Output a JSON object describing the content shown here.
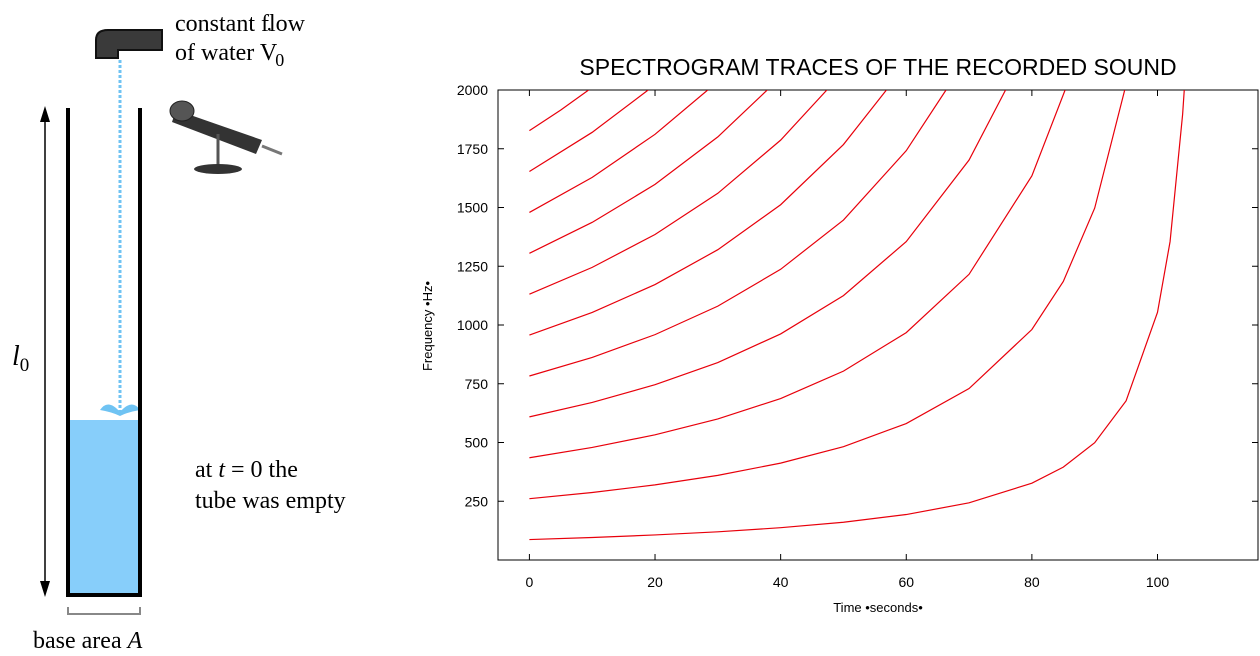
{
  "diagram": {
    "flow_line_1": "constant flow",
    "flow_line_2": "of water",
    "flow_symbol": "V",
    "flow_dot": "˙",
    "flow_subscript": "0",
    "length_symbol": "l",
    "length_subscript": "0",
    "note_line_1_start": "at",
    "note_time": "t",
    "note_line_1_end": "= 0  the",
    "note_line_2": "tube was empty",
    "base_label": "base area",
    "base_symbol": "A"
  },
  "chart_data": {
    "type": "line",
    "title": "SPECTROGRAM TRACES OF THE RECORDED SOUND",
    "x_label": "Time •seconds•",
    "y_label": "Frequency •Hz•",
    "xlim": [
      -5,
      116
    ],
    "ylim": [
      0,
      2000
    ],
    "xticks": [
      0,
      20,
      40,
      60,
      80,
      100
    ],
    "yticks": [
      250,
      500,
      750,
      1000,
      1250,
      1500,
      1750,
      2000
    ],
    "color": "#e8000b",
    "series": [
      {
        "x": [
          0,
          10,
          20,
          30,
          40,
          50,
          60,
          70,
          80,
          85,
          90,
          95,
          100,
          102,
          104,
          104.26
        ],
        "values": [
          87,
          95.8,
          106.6,
          120.0,
          137.4,
          160.7,
          193.5,
          243.2,
          327.0,
          395.1,
          499.1,
          677.4,
          1053.7,
          1354.8,
          1896.6,
          2000
        ]
      },
      {
        "x": [
          0,
          10,
          20,
          30,
          40,
          50,
          60,
          70,
          80,
          85,
          90,
          94.78
        ],
        "values": [
          261,
          287.3,
          319.6,
          360.1,
          412.3,
          482.2,
          580.6,
          729.5,
          980.8,
          1185.3,
          1497.4,
          2000
        ]
      },
      {
        "x": [
          0,
          10,
          20,
          30,
          40,
          50,
          60,
          70,
          80,
          85.29
        ],
        "values": [
          435,
          478.9,
          532.8,
          600.2,
          687.2,
          803.6,
          967.7,
          1215.8,
          1634.7,
          2000
        ]
      },
      {
        "x": [
          0,
          10,
          20,
          30,
          40,
          50,
          60,
          70,
          75.81
        ],
        "values": [
          609,
          670.5,
          745.9,
          840.2,
          962.1,
          1125.1,
          1354.8,
          1702.1,
          2000
        ]
      },
      {
        "x": [
          0,
          10,
          20,
          30,
          40,
          50,
          60,
          66.33
        ],
        "values": [
          783,
          862.0,
          959.0,
          1080.3,
          1237.0,
          1446.5,
          1741.9,
          2000
        ]
      },
      {
        "x": [
          0,
          10,
          20,
          30,
          40,
          50,
          56.84
        ],
        "values": [
          957,
          1053.6,
          1172.1,
          1320.4,
          1511.8,
          1767.9,
          2000
        ]
      },
      {
        "x": [
          0,
          10,
          20,
          30,
          40,
          47.36
        ],
        "values": [
          1131,
          1245.2,
          1385.2,
          1560.5,
          1786.7,
          2000
        ]
      },
      {
        "x": [
          0,
          10,
          20,
          30,
          37.87
        ],
        "values": [
          1305,
          1436.8,
          1598.3,
          1800.5,
          2000
        ]
      },
      {
        "x": [
          0,
          10,
          20,
          28.39
        ],
        "values": [
          1479,
          1628.3,
          1811.4,
          2000
        ]
      },
      {
        "x": [
          0,
          10,
          18.91
        ],
        "values": [
          1653,
          1819.9,
          2000
        ]
      },
      {
        "x": [
          0,
          5,
          9.43
        ],
        "values": [
          1827,
          1914.9,
          2000
        ]
      }
    ]
  }
}
